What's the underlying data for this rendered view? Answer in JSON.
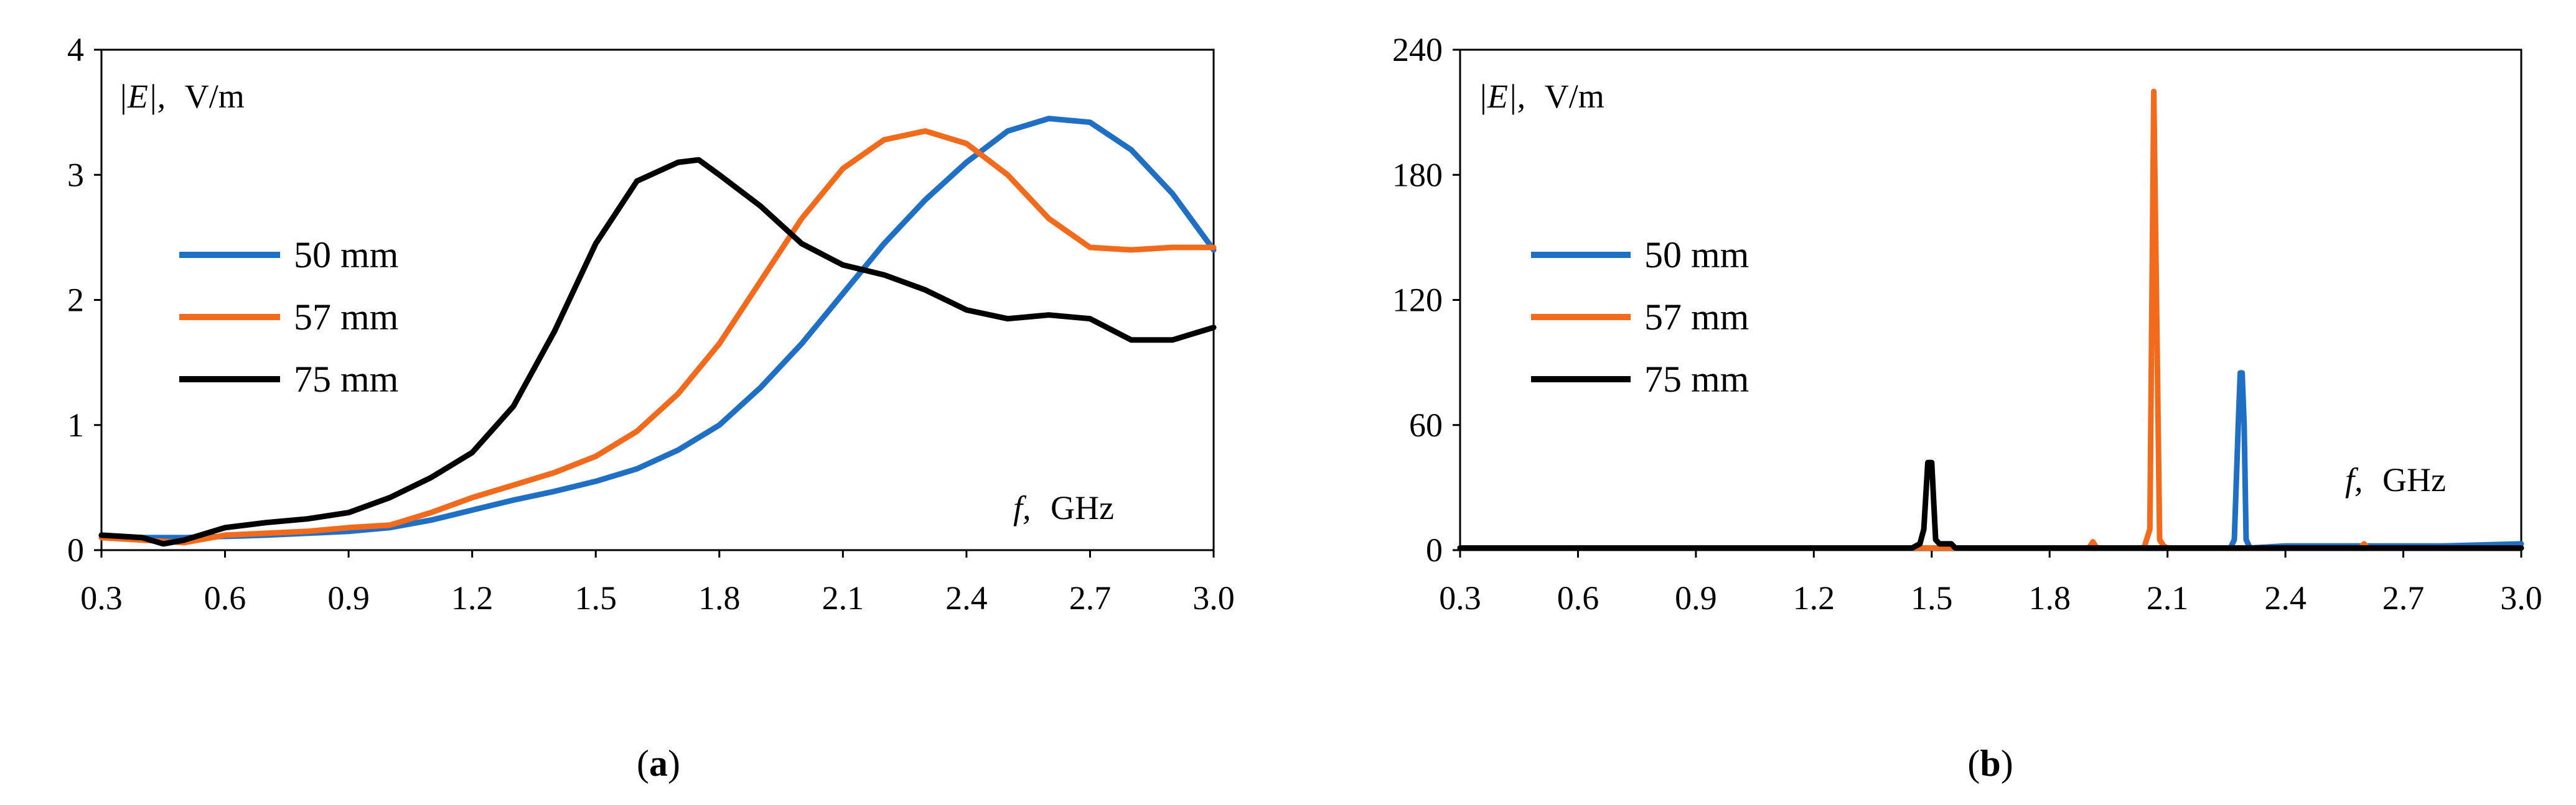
{
  "colors": {
    "blue": "#1f6fc5",
    "orange": "#f26b1d",
    "black": "#000000"
  },
  "chart_data": [
    {
      "type": "line",
      "panel": "a",
      "caption": {
        "open": "(",
        "letter": "a",
        "close": ")"
      },
      "ylabel_prefix": "|E|,",
      "ylabel_unit": "V/m",
      "xlabel_var": "f,",
      "xlabel_unit": "GHz",
      "xlim": [
        0.3,
        3.0
      ],
      "ylim": [
        0,
        4
      ],
      "xticks": [
        "0.3",
        "0.6",
        "0.9",
        "1.2",
        "1.5",
        "1.8",
        "2.1",
        "2.4",
        "2.7",
        "3.0"
      ],
      "yticks": [
        "0",
        "1",
        "2",
        "3",
        "4"
      ],
      "series": [
        {
          "name": "50 mm",
          "color": "#1f6fc5",
          "x": [
            0.3,
            0.5,
            0.7,
            0.9,
            1.0,
            1.1,
            1.2,
            1.3,
            1.4,
            1.5,
            1.6,
            1.7,
            1.8,
            1.9,
            2.0,
            2.1,
            2.2,
            2.3,
            2.4,
            2.5,
            2.6,
            2.7,
            2.8,
            2.9,
            3.0
          ],
          "y": [
            0.1,
            0.1,
            0.12,
            0.15,
            0.18,
            0.24,
            0.32,
            0.4,
            0.47,
            0.55,
            0.65,
            0.8,
            1.0,
            1.3,
            1.65,
            2.05,
            2.45,
            2.8,
            3.1,
            3.35,
            3.45,
            3.42,
            3.2,
            2.85,
            2.4
          ]
        },
        {
          "name": "57 mm",
          "color": "#f26b1d",
          "x": [
            0.3,
            0.4,
            0.5,
            0.6,
            0.8,
            0.9,
            1.0,
            1.1,
            1.2,
            1.3,
            1.4,
            1.5,
            1.6,
            1.7,
            1.8,
            1.9,
            2.0,
            2.1,
            2.2,
            2.3,
            2.4,
            2.5,
            2.6,
            2.7,
            2.8,
            2.9,
            3.0
          ],
          "y": [
            0.1,
            0.08,
            0.06,
            0.12,
            0.15,
            0.18,
            0.2,
            0.3,
            0.42,
            0.52,
            0.62,
            0.75,
            0.95,
            1.25,
            1.65,
            2.15,
            2.65,
            3.05,
            3.28,
            3.35,
            3.25,
            3.0,
            2.65,
            2.42,
            2.4,
            2.42,
            2.42
          ]
        },
        {
          "name": "75 mm",
          "color": "#000000",
          "x": [
            0.3,
            0.4,
            0.45,
            0.5,
            0.6,
            0.7,
            0.8,
            0.9,
            1.0,
            1.1,
            1.2,
            1.3,
            1.4,
            1.5,
            1.6,
            1.7,
            1.75,
            1.8,
            1.9,
            2.0,
            2.1,
            2.2,
            2.3,
            2.4,
            2.5,
            2.6,
            2.7,
            2.8,
            2.9,
            3.0
          ],
          "y": [
            0.12,
            0.1,
            0.05,
            0.08,
            0.18,
            0.22,
            0.25,
            0.3,
            0.42,
            0.58,
            0.78,
            1.15,
            1.75,
            2.45,
            2.95,
            3.1,
            3.12,
            3.0,
            2.75,
            2.45,
            2.28,
            2.2,
            2.08,
            1.92,
            1.85,
            1.88,
            1.85,
            1.68,
            1.68,
            1.78
          ]
        }
      ]
    },
    {
      "type": "line",
      "panel": "b",
      "caption": {
        "open": "(",
        "letter": "b",
        "close": ")"
      },
      "ylabel_prefix": "|E|,",
      "ylabel_unit": "V/m",
      "xlabel_var": "f,",
      "xlabel_unit": "GHz",
      "xlim": [
        0.3,
        3.0
      ],
      "ylim": [
        0,
        240
      ],
      "xticks": [
        "0.3",
        "0.6",
        "0.9",
        "1.2",
        "1.5",
        "1.8",
        "2.1",
        "2.4",
        "2.7",
        "3.0"
      ],
      "yticks": [
        "0",
        "60",
        "120",
        "180",
        "240"
      ],
      "series": [
        {
          "name": "50 mm",
          "color": "#1f6fc5",
          "x": [
            0.3,
            2.26,
            2.27,
            2.28,
            2.285,
            2.29,
            2.295,
            2.3,
            2.31,
            2.4,
            2.55,
            2.8,
            3.0
          ],
          "y": [
            1,
            1,
            5,
            60,
            85,
            85,
            60,
            5,
            1,
            2,
            2,
            2,
            3
          ]
        },
        {
          "name": "57 mm",
          "color": "#f26b1d",
          "x": [
            0.3,
            1.9,
            1.91,
            1.92,
            2.04,
            2.055,
            2.065,
            2.07,
            2.08,
            2.09,
            2.1,
            2.2,
            2.59,
            2.6,
            2.61,
            3.0
          ],
          "y": [
            1,
            1,
            4,
            1,
            1,
            10,
            220,
            150,
            5,
            2,
            1,
            1,
            1,
            3,
            1,
            1
          ]
        },
        {
          "name": "75 mm",
          "color": "#000000",
          "x": [
            0.3,
            1.45,
            1.47,
            1.48,
            1.49,
            1.5,
            1.51,
            1.52,
            1.55,
            1.56,
            1.6,
            3.0
          ],
          "y": [
            1,
            1,
            3,
            10,
            42,
            42,
            5,
            3,
            3,
            1,
            1,
            1
          ]
        }
      ]
    }
  ]
}
